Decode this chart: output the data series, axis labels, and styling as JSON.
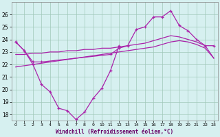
{
  "xlabel": "Windchill (Refroidissement éolien,°C)",
  "background_color": "#d6f0f0",
  "grid_color": "#a0c8b8",
  "line_color": "#aa22aa",
  "s1_x": [
    0,
    1,
    2,
    3,
    4,
    5,
    6,
    7,
    8,
    9,
    10,
    11,
    12
  ],
  "s1_y": [
    23.8,
    23.1,
    22.0,
    20.4,
    19.8,
    18.5,
    18.3,
    17.6,
    18.2,
    19.3,
    20.1,
    21.5,
    23.5
  ],
  "s2_x": [
    0,
    1,
    2,
    3,
    11,
    12,
    13,
    14,
    15,
    16,
    17,
    18,
    19,
    20,
    21,
    22,
    23
  ],
  "s2_y": [
    23.8,
    23.1,
    22.2,
    22.2,
    22.8,
    23.3,
    23.5,
    24.8,
    25.0,
    25.8,
    25.8,
    26.3,
    25.1,
    24.7,
    24.0,
    23.5,
    23.5
  ],
  "s3_x": [
    0,
    1,
    2,
    3,
    4,
    5,
    6,
    7,
    8,
    9,
    10,
    11,
    12,
    13,
    14,
    15,
    16,
    17,
    18,
    19,
    20,
    21,
    22,
    23
  ],
  "s3_y": [
    21.8,
    21.9,
    22.0,
    22.1,
    22.2,
    22.3,
    22.4,
    22.5,
    22.6,
    22.7,
    22.8,
    22.9,
    23.0,
    23.1,
    23.2,
    23.3,
    23.4,
    23.6,
    23.8,
    23.9,
    23.8,
    23.6,
    23.3,
    22.5
  ],
  "s4_x": [
    0,
    1,
    2,
    3,
    4,
    5,
    6,
    7,
    8,
    9,
    10,
    11,
    12,
    13,
    14,
    15,
    16,
    17,
    18,
    19,
    20,
    21,
    22,
    23
  ],
  "s4_y": [
    22.8,
    22.8,
    22.9,
    22.9,
    23.0,
    23.0,
    23.1,
    23.1,
    23.2,
    23.2,
    23.3,
    23.3,
    23.4,
    23.5,
    23.6,
    23.7,
    23.9,
    24.1,
    24.3,
    24.2,
    24.0,
    23.8,
    23.5,
    22.5
  ],
  "ylim": [
    17.5,
    27.0
  ],
  "xlim": [
    -0.5,
    23.5
  ],
  "yticks": [
    18,
    19,
    20,
    21,
    22,
    23,
    24,
    25,
    26
  ]
}
